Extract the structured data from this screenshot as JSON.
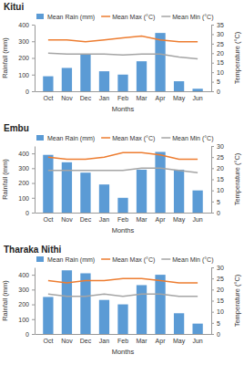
{
  "chart_data": [
    {
      "type": "bar",
      "title": "Kitui",
      "x_label": "Months",
      "y_label": "Rainfall (mm)",
      "y2_label": "Temperature (°C)",
      "categories": [
        "Oct",
        "Nov",
        "Dec",
        "Jan",
        "Feb",
        "Mar",
        "Apr",
        "May",
        "Jun"
      ],
      "series": [
        {
          "name": "Mean Rain (mm)",
          "type": "bar",
          "color": "#5b9bd5",
          "values": [
            90,
            140,
            220,
            120,
            100,
            180,
            350,
            60,
            15
          ]
        },
        {
          "name": "Mean Max (°C)",
          "type": "line",
          "axis": "y2",
          "color": "#ed7d31",
          "values": [
            27,
            27,
            26,
            27,
            28,
            29,
            27,
            26,
            26
          ]
        },
        {
          "name": "Mean Min (°C)",
          "type": "line",
          "axis": "y2",
          "color": "#a5a5a5",
          "values": [
            20,
            19.5,
            19.5,
            19.5,
            19,
            19.5,
            19.5,
            18,
            17
          ]
        }
      ],
      "ylim": [
        0,
        400
      ],
      "yticks": [
        0,
        100,
        200,
        300,
        400
      ],
      "y2lim": [
        0,
        35
      ],
      "y2ticks": [
        0,
        5,
        10,
        15,
        20,
        25,
        30,
        35
      ],
      "legend": "top"
    },
    {
      "type": "bar",
      "title": "Embu",
      "x_label": "Months",
      "y_label": "Rainfall (mm)",
      "y2_label": "Temperature (°C)",
      "categories": [
        "Oct",
        "Nov",
        "Dec",
        "Jan",
        "Feb",
        "Mar",
        "Apr",
        "May",
        "Jun"
      ],
      "series": [
        {
          "name": "Mean Rain (mm)",
          "type": "bar",
          "color": "#5b9bd5",
          "values": [
            390,
            340,
            270,
            190,
            100,
            290,
            410,
            290,
            150
          ]
        },
        {
          "name": "Mean Max (°C)",
          "type": "line",
          "axis": "y2",
          "color": "#ed7d31",
          "values": [
            25,
            24,
            24,
            25,
            27,
            27,
            26,
            24,
            24
          ]
        },
        {
          "name": "Mean Min (°C)",
          "type": "line",
          "axis": "y2",
          "color": "#a5a5a5",
          "values": [
            19,
            19,
            19,
            19,
            19,
            20,
            20,
            19,
            18
          ]
        }
      ],
      "ylim": [
        0,
        450
      ],
      "yticks": [
        0,
        100,
        200,
        300,
        400
      ],
      "y2lim": [
        0,
        30
      ],
      "y2ticks": [
        0,
        5,
        10,
        15,
        20,
        25,
        30
      ],
      "legend": "top"
    },
    {
      "type": "bar",
      "title": "Tharaka Nithi",
      "x_label": "Months",
      "y_label": "Rainfall (mm)",
      "y2_label": "Temperature (°C)",
      "categories": [
        "Oct",
        "Nov",
        "Dec",
        "Jan",
        "Feb",
        "Mar",
        "Apr",
        "May",
        "Jun"
      ],
      "series": [
        {
          "name": "Mean Rain (mm)",
          "type": "bar",
          "color": "#5b9bd5",
          "values": [
            250,
            430,
            410,
            230,
            200,
            330,
            400,
            140,
            70
          ]
        },
        {
          "name": "Mean Max (°C)",
          "type": "line",
          "axis": "y2",
          "color": "#ed7d31",
          "values": [
            24,
            23,
            24,
            24,
            25,
            25,
            24,
            23,
            23
          ]
        },
        {
          "name": "Mean Min (°C)",
          "type": "line",
          "axis": "y2",
          "color": "#a5a5a5",
          "values": [
            18,
            17,
            17,
            18,
            17,
            18,
            18,
            17,
            17
          ]
        }
      ],
      "ylim": [
        0,
        450
      ],
      "yticks": [
        0,
        100,
        200,
        300,
        400
      ],
      "y2lim": [
        0,
        30
      ],
      "y2ticks": [
        0,
        5,
        10,
        15,
        20,
        25,
        30
      ],
      "legend": "top"
    }
  ]
}
